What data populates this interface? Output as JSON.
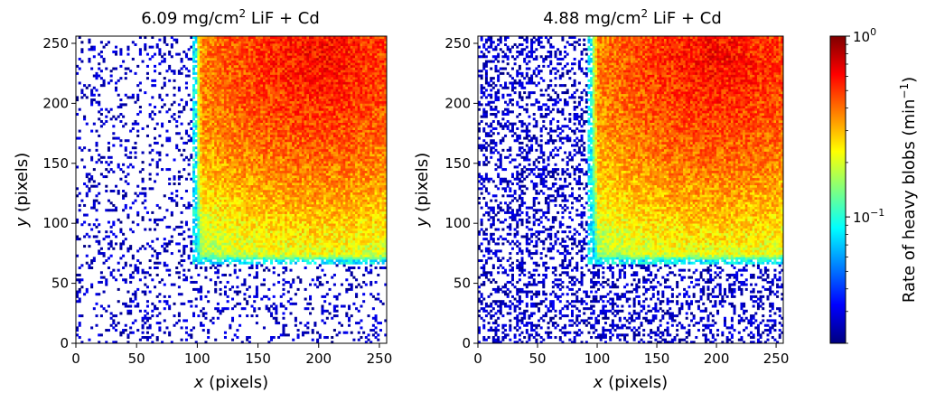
{
  "chart_data": [
    {
      "type": "heatmap",
      "title_value": "6.09",
      "title_unit": "mg/cm",
      "title_sup": "2",
      "title_rest": "LiF + Cd",
      "xlabel_var": "x",
      "xlabel_unit": "(pixels)",
      "ylabel_var": "y",
      "ylabel_unit": "(pixels)",
      "xlim": [
        0,
        256
      ],
      "ylim": [
        0,
        256
      ],
      "xticks": [
        0,
        50,
        100,
        150,
        200,
        250
      ],
      "yticks": [
        0,
        50,
        100,
        150,
        200,
        250
      ],
      "bright_region": {
        "x": [
          100,
          256
        ],
        "y": [
          70,
          256
        ]
      },
      "hot_corner": {
        "x": 200,
        "y": 240
      },
      "sparse_density": 0.16,
      "bins": 128,
      "seed": 11
    },
    {
      "type": "heatmap",
      "title_value": "4.88",
      "title_unit": "mg/cm",
      "title_sup": "2",
      "title_rest": "LiF + Cd",
      "xlabel_var": "x",
      "xlabel_unit": "(pixels)",
      "ylabel_var": "y",
      "ylabel_unit": "(pixels)",
      "xlim": [
        0,
        256
      ],
      "ylim": [
        0,
        256
      ],
      "xticks": [
        0,
        50,
        100,
        150,
        200,
        250
      ],
      "yticks": [
        0,
        50,
        100,
        150,
        200,
        250
      ],
      "bright_region": {
        "x": [
          97,
          256
        ],
        "y": [
          70,
          256
        ]
      },
      "hot_corner": {
        "x": 200,
        "y": 240
      },
      "sparse_density": 0.33,
      "bins": 128,
      "seed": 29
    }
  ],
  "colorbar": {
    "label": "Rate of heavy blobs (min",
    "label_sup": "−1",
    "label_close": ")",
    "scale": "log",
    "colormap": "jet",
    "range": [
      0.02,
      1
    ],
    "ticks": [
      {
        "value": 1,
        "base": "10",
        "exp": "0"
      },
      {
        "value": 0.1,
        "base": "10",
        "exp": "−1"
      }
    ]
  }
}
